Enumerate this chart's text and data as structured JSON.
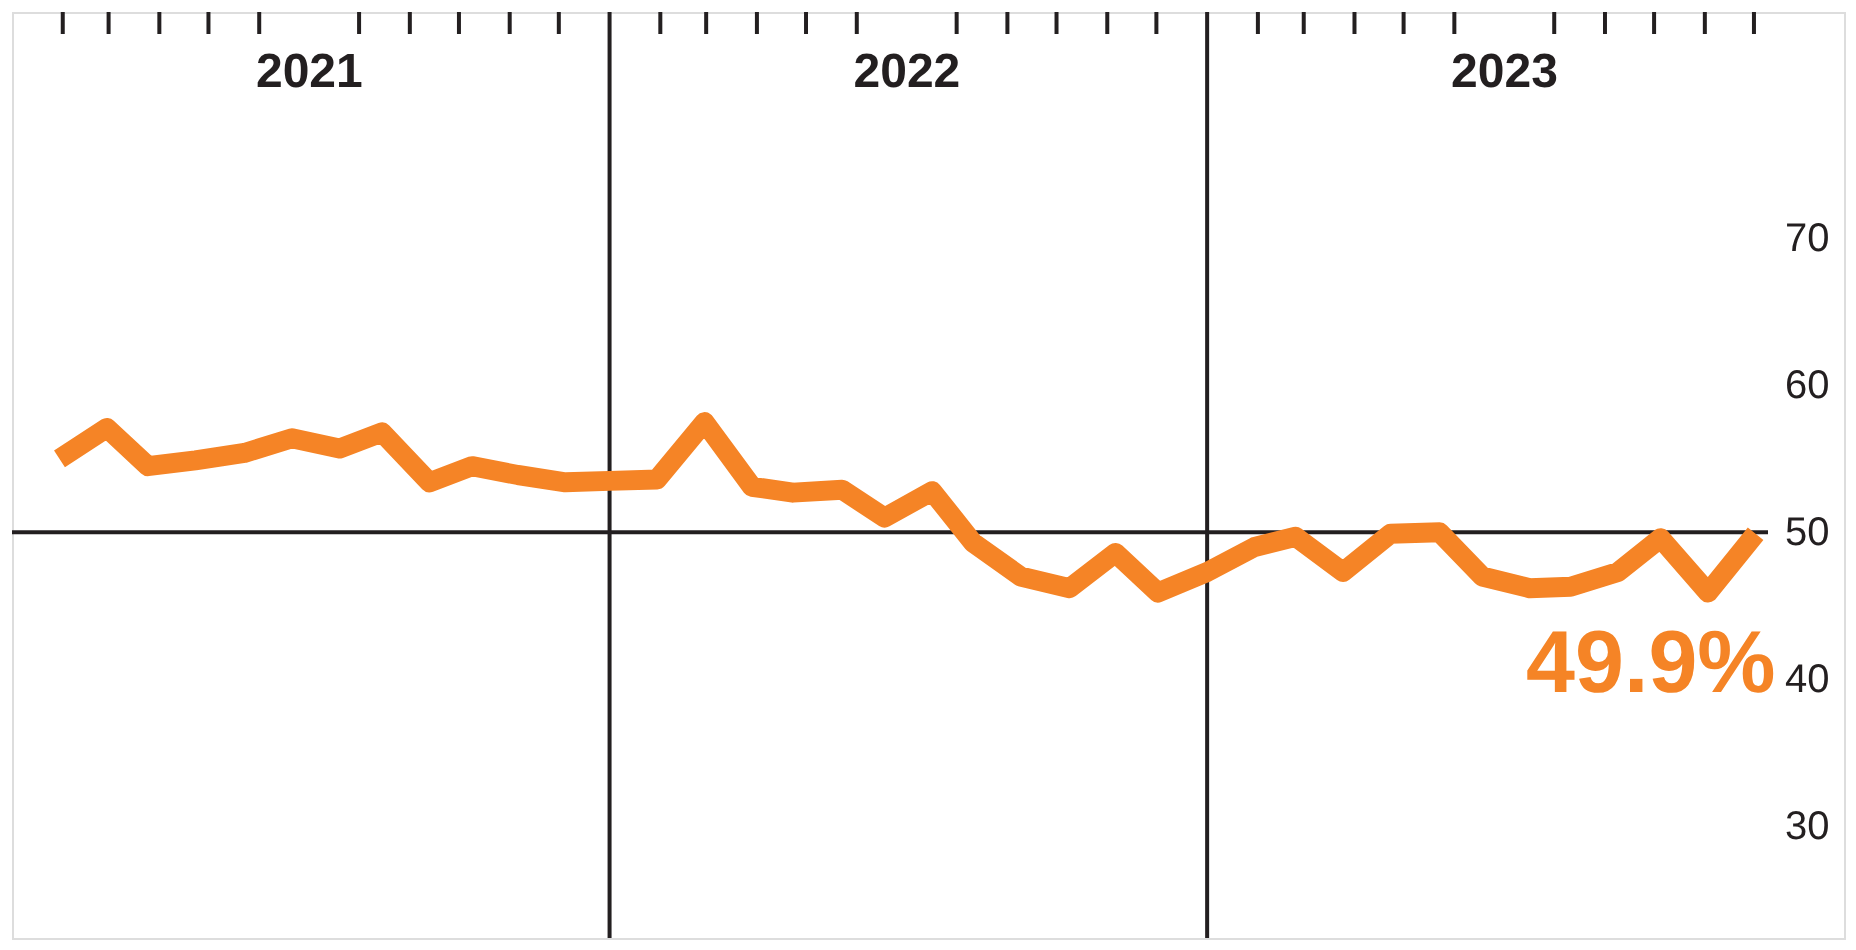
{
  "chart_data": {
    "type": "line",
    "x": [
      "2021-01-30",
      "2021-02-28",
      "2021-03-25",
      "2021-04-23",
      "2021-05-23",
      "2021-06-21",
      "2021-07-20",
      "2021-08-15",
      "2021-09-13",
      "2021-10-09",
      "2021-11-06",
      "2021-12-05",
      "2022-01-01",
      "2022-01-30",
      "2022-02-28",
      "2022-03-29",
      "2022-04-23",
      "2022-05-23",
      "2022-06-18",
      "2022-07-17",
      "2022-08-11",
      "2022-09-09",
      "2022-10-09",
      "2022-11-06",
      "2022-12-02",
      "2023-01-01",
      "2023-01-30",
      "2023-02-24",
      "2023-03-25",
      "2023-04-23",
      "2023-05-23",
      "2023-06-18",
      "2023-07-17",
      "2023-08-11",
      "2023-09-09",
      "2023-10-05",
      "2023-11-03",
      "2023-12-02"
    ],
    "series": [
      {
        "color": "#f58426",
        "values": [
          55.0,
          57.1,
          54.5,
          54.9,
          55.4,
          56.4,
          55.7,
          56.8,
          53.4,
          54.5,
          53.9,
          53.4,
          53.5,
          53.6,
          57.5,
          53.1,
          52.7,
          52.9,
          51.0,
          52.8,
          49.3,
          47.0,
          46.2,
          48.6,
          45.9,
          47.3,
          49.0,
          49.7,
          47.3,
          49.9,
          50.0,
          47.0,
          46.2,
          46.3,
          47.3,
          49.6,
          45.9,
          49.9
        ]
      }
    ],
    "xlim": [
      "2021-01-01",
      "2024-01-25"
    ],
    "xticks": [
      {
        "value": "2021-02-01",
        "label": null
      },
      {
        "value": "2021-03-01",
        "label": null
      },
      {
        "value": "2021-04-01",
        "label": null
      },
      {
        "value": "2021-05-01",
        "label": null
      },
      {
        "value": "2021-06-01",
        "label": null
      },
      {
        "value": "2021-07-01",
        "label": "2021"
      },
      {
        "value": "2021-08-01",
        "label": null
      },
      {
        "value": "2021-09-01",
        "label": null
      },
      {
        "value": "2021-10-01",
        "label": null
      },
      {
        "value": "2021-11-01",
        "label": null
      },
      {
        "value": "2021-12-01",
        "label": null
      },
      {
        "value": "2022-02-01",
        "label": null
      },
      {
        "value": "2022-03-01",
        "label": null
      },
      {
        "value": "2022-04-01",
        "label": null
      },
      {
        "value": "2022-05-01",
        "label": null
      },
      {
        "value": "2022-06-01",
        "label": null
      },
      {
        "value": "2022-07-01",
        "label": "2022"
      },
      {
        "value": "2022-08-01",
        "label": null
      },
      {
        "value": "2022-09-01",
        "label": null
      },
      {
        "value": "2022-10-01",
        "label": null
      },
      {
        "value": "2022-11-01",
        "label": null
      },
      {
        "value": "2022-12-01",
        "label": null
      },
      {
        "value": "2023-02-01",
        "label": null
      },
      {
        "value": "2023-03-01",
        "label": null
      },
      {
        "value": "2023-04-01",
        "label": null
      },
      {
        "value": "2023-05-01",
        "label": null
      },
      {
        "value": "2023-06-01",
        "label": null
      },
      {
        "value": "2023-07-01",
        "label": "2023"
      },
      {
        "value": "2023-08-01",
        "label": null
      },
      {
        "value": "2023-09-01",
        "label": null
      },
      {
        "value": "2023-10-01",
        "label": null
      },
      {
        "value": "2023-11-01",
        "label": null
      },
      {
        "value": "2023-12-01",
        "label": null
      }
    ],
    "ylim": [
      22.4,
      85.4
    ],
    "yticks": [
      30,
      40,
      50,
      60,
      70
    ],
    "ref_lines": [
      {
        "axis": "x",
        "value": "2022-01-01",
        "label": null
      },
      {
        "axis": "x",
        "value": "2023-01-01",
        "label": null
      },
      {
        "axis": "y",
        "value": 50,
        "label": null
      }
    ],
    "annotations": [
      {
        "text": "49.9%",
        "x": "2023-12-02",
        "y": 49.9
      }
    ],
    "grid": false,
    "marker": "none",
    "line_style": "solid"
  }
}
